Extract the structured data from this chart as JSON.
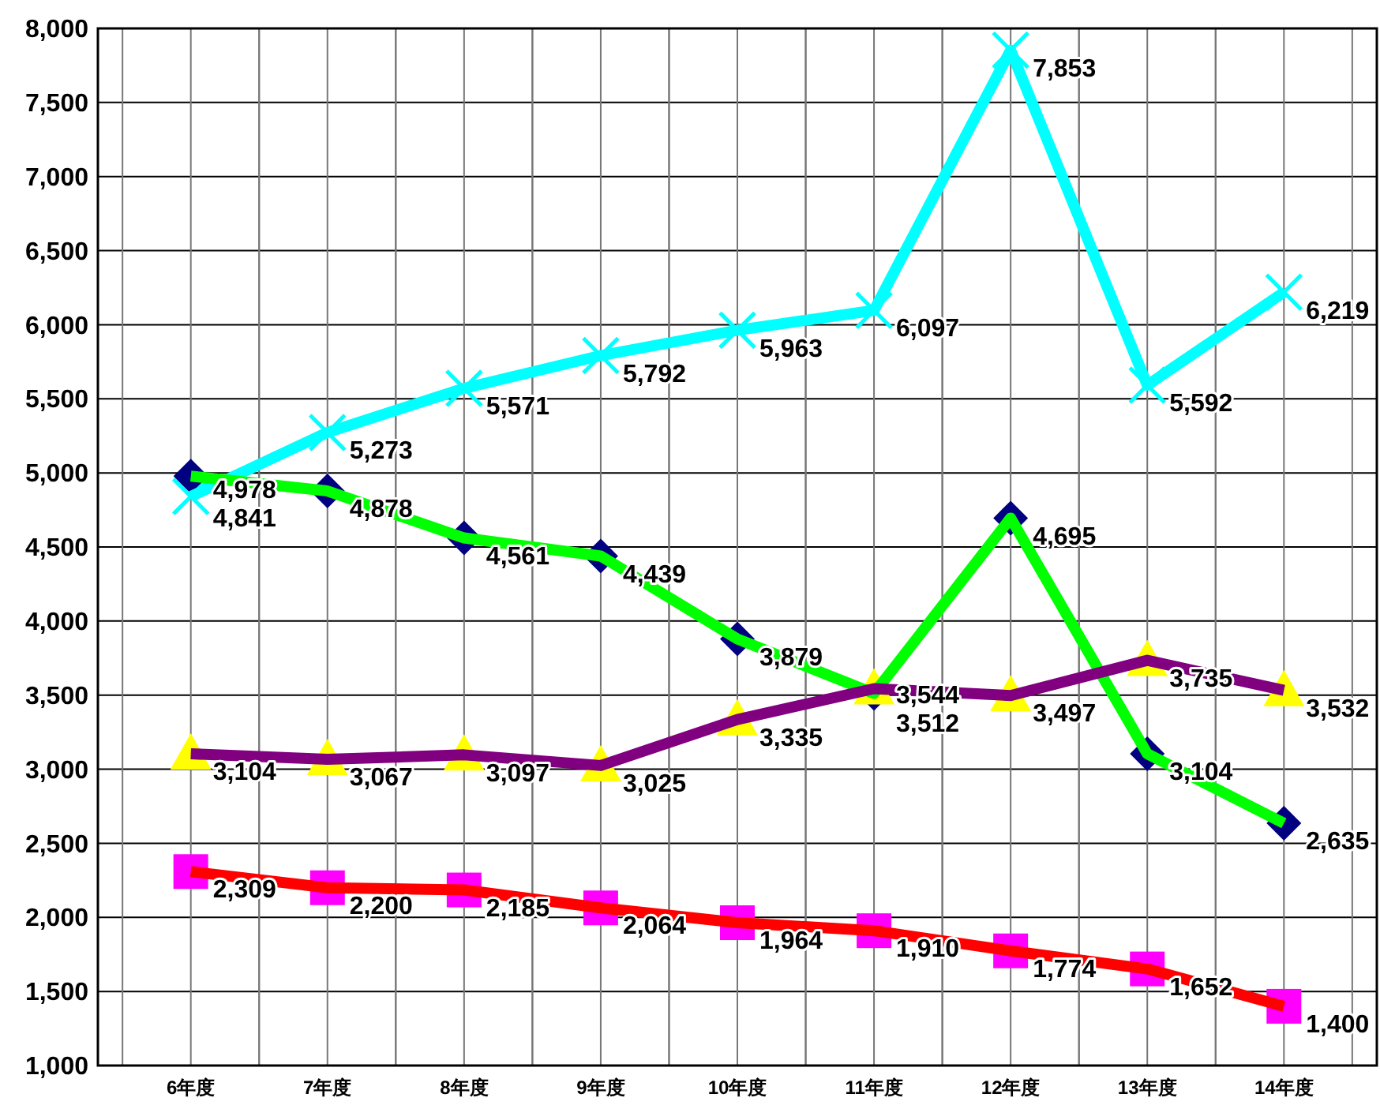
{
  "chart_data": {
    "type": "line",
    "categories": [
      "6年度",
      "7年度",
      "8年度",
      "9年度",
      "10年度",
      "11年度",
      "12年度",
      "13年度",
      "14年度"
    ],
    "series": [
      {
        "color": "#00ffff",
        "colors": [
          "#00ffff",
          "#00ffff",
          "#00ffff",
          "#00ffff",
          "#00ffff",
          "#00ffff",
          "#00ffff",
          "#00ffff",
          "#00ffff"
        ],
        "marker": "cross",
        "values": [
          4841,
          5273,
          5571,
          5792,
          5963,
          6097,
          7853,
          5592,
          6219
        ],
        "value_labels": [
          "4,841",
          "5,273",
          "5,571",
          "5,792",
          "5,963",
          "6,097",
          "7,853",
          "5,592",
          "6,219"
        ]
      },
      {
        "color": "#00ff00",
        "colors": [
          "#000080",
          "#000080",
          "#000080",
          "#000080",
          "#000080",
          "#000080",
          "#000080",
          "#000080",
          "#000080"
        ],
        "marker": "diamond",
        "values": [
          4978,
          4878,
          4561,
          4439,
          3879,
          3512,
          4695,
          3104,
          2635
        ],
        "value_labels": [
          "4,978",
          "4,878",
          "4,561",
          "4,439",
          "3,879",
          "3,512",
          "4,695",
          "3,104",
          "2,635"
        ]
      },
      {
        "color": "#800080",
        "colors": [
          "#ffff00",
          "#ffff00",
          "#ffff00",
          "#ffff00",
          "#ffff00",
          "#ffff00",
          "#ffff00",
          "#ffff00",
          "#ffff00"
        ],
        "marker": "triangle",
        "values": [
          3104,
          3067,
          3097,
          3025,
          3335,
          3544,
          3497,
          3735,
          3532
        ],
        "value_labels": [
          "3,104",
          "3,067",
          "3,097",
          "3,025",
          "3,335",
          "3,544",
          "3,497",
          "3,735",
          "3,532"
        ]
      },
      {
        "color": "#ff0000",
        "colors": [
          "#ff00ff",
          "#ff00ff",
          "#ff00ff",
          "#ff00ff",
          "#ff00ff",
          "#ff00ff",
          "#ff00ff",
          "#ff00ff",
          "#ff00ff"
        ],
        "marker": "square",
        "values": [
          2309,
          2200,
          2185,
          2064,
          1964,
          1910,
          1774,
          1652,
          1400
        ],
        "value_labels": [
          "2,309",
          "2,200",
          "2,185",
          "2,064",
          "1,964",
          "1,910",
          "1,774",
          "1,652",
          "1,400"
        ]
      }
    ],
    "ylim": [
      1000,
      8000
    ],
    "yticks": [
      {
        "value": 1000,
        "label": "1,000"
      },
      {
        "value": 1500,
        "label": "1,500"
      },
      {
        "value": 2000,
        "label": "2,000"
      },
      {
        "value": 2500,
        "label": "2,500"
      },
      {
        "value": 3000,
        "label": "3,000"
      },
      {
        "value": 3500,
        "label": "3,500"
      },
      {
        "value": 4000,
        "label": "4,000"
      },
      {
        "value": 4500,
        "label": "4,500"
      },
      {
        "value": 5000,
        "label": "5,000"
      },
      {
        "value": 5500,
        "label": "5,500"
      },
      {
        "value": 6000,
        "label": "6,000"
      },
      {
        "value": 6500,
        "label": "6,500"
      },
      {
        "value": 7000,
        "label": "7,000"
      },
      {
        "value": 7500,
        "label": "7,500"
      },
      {
        "value": 8000,
        "label": "8,000"
      }
    ],
    "grid": true
  }
}
